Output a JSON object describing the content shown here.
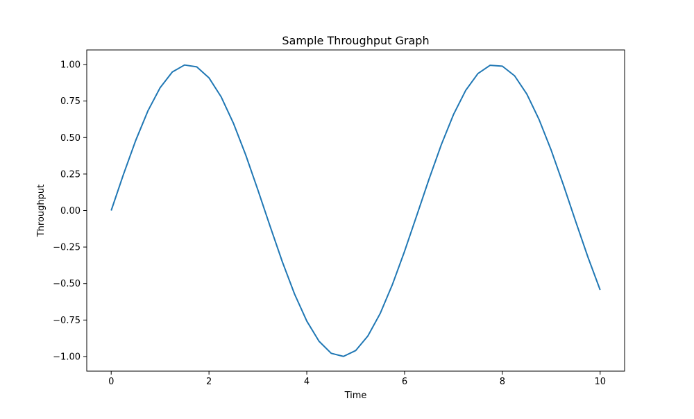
{
  "chart_data": {
    "type": "line",
    "title": "Sample Throughput Graph",
    "xlabel": "Time",
    "ylabel": "Throughput",
    "xlim": [
      -0.5,
      10.5
    ],
    "ylim": [
      -1.1,
      1.1
    ],
    "x_ticks": [
      0,
      2,
      4,
      6,
      8,
      10
    ],
    "x_tick_labels": [
      "0",
      "2",
      "4",
      "6",
      "8",
      "10"
    ],
    "y_ticks": [
      -1.0,
      -0.75,
      -0.5,
      -0.25,
      0.0,
      0.25,
      0.5,
      0.75,
      1.0
    ],
    "y_tick_labels": [
      "−1.00",
      "−0.75",
      "−0.50",
      "−0.25",
      "0.00",
      "0.25",
      "0.50",
      "0.75",
      "1.00"
    ],
    "grid": false,
    "legend": "none",
    "series": [
      {
        "color": "#1f77b4",
        "x": [
          0,
          0.25,
          0.5,
          0.75,
          1.0,
          1.25,
          1.5,
          1.75,
          2.0,
          2.25,
          2.5,
          2.75,
          3.0,
          3.25,
          3.5,
          3.75,
          4.0,
          4.25,
          4.5,
          4.75,
          5.0,
          5.25,
          5.5,
          5.75,
          6.0,
          6.25,
          6.5,
          6.75,
          7.0,
          7.25,
          7.5,
          7.75,
          8.0,
          8.25,
          8.5,
          8.75,
          9.0,
          9.25,
          9.5,
          9.75,
          10.0
        ],
        "y": [
          0.0,
          0.247,
          0.479,
          0.682,
          0.841,
          0.949,
          0.997,
          0.984,
          0.909,
          0.778,
          0.598,
          0.382,
          0.141,
          -0.108,
          -0.351,
          -0.572,
          -0.757,
          -0.895,
          -0.978,
          -0.999,
          -0.959,
          -0.859,
          -0.706,
          -0.508,
          -0.279,
          -0.033,
          0.215,
          0.45,
          0.657,
          0.823,
          0.938,
          0.995,
          0.989,
          0.923,
          0.798,
          0.624,
          0.412,
          0.174,
          -0.075,
          -0.319,
          -0.544
        ]
      }
    ]
  }
}
